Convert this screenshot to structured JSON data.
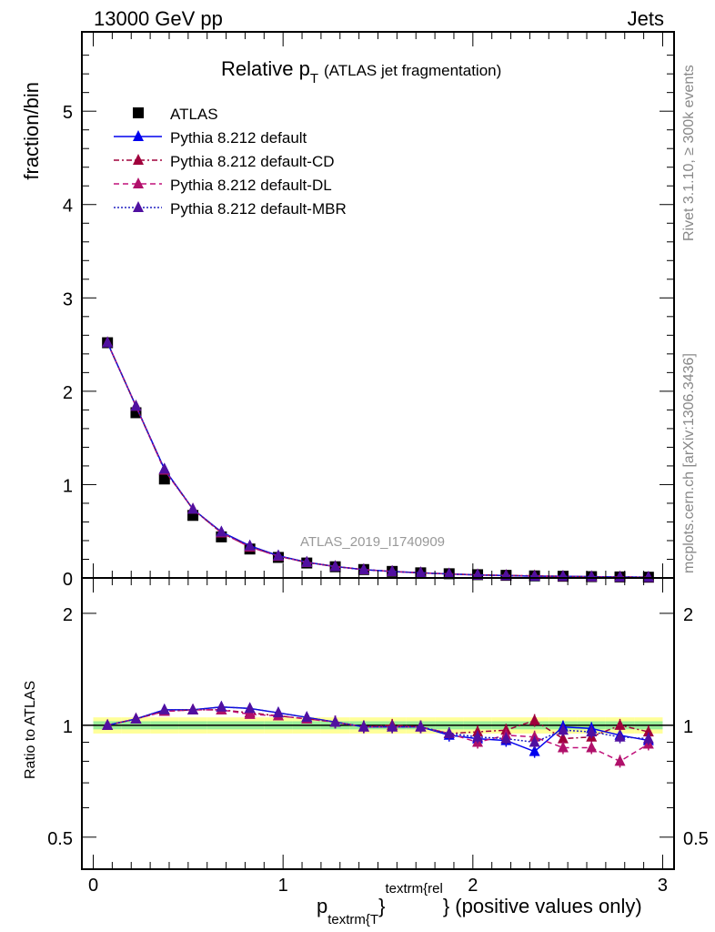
{
  "header": {
    "left": "13000 GeV pp",
    "right": "Jets"
  },
  "side": {
    "rivet": "Rivet 3.1.10, ≥ 300k events",
    "mcplots": "mcplots.cern.ch [arXiv:1306.3436]"
  },
  "watermark": "ATLAS_2019_I1740909",
  "chart_data": {
    "type": "scatter",
    "title": "Relative p",
    "title_sub": "T",
    "title_suffix": "(ATLAS jet fragmentation)",
    "ylabel": "fraction/bin",
    "ratio_ylabel": "Ratio to ATLAS",
    "xlabel_main": "p",
    "xlabel_sub": "textrm{T",
    "xlabel_brace": "}",
    "xlabel_sup": "textrm{rel",
    "xlabel_rest": "} (positive values only)",
    "xlim": [
      -0.06,
      3.06
    ],
    "ylim": [
      0,
      5.85
    ],
    "ratio_ylim": [
      0.41,
      2.49
    ],
    "ratio_scale": "log",
    "x_ticks": [
      "0",
      "1",
      "2",
      "3"
    ],
    "y_ticks": [
      "0",
      "1",
      "2",
      "3",
      "4",
      "5"
    ],
    "ratio_ticks": [
      "0.5",
      "1",
      "2"
    ],
    "legend_position": "top-left",
    "x": [
      0.075,
      0.225,
      0.375,
      0.525,
      0.675,
      0.825,
      0.975,
      1.125,
      1.275,
      1.425,
      1.575,
      1.725,
      1.875,
      2.025,
      2.175,
      2.325,
      2.475,
      2.625,
      2.775,
      2.925
    ],
    "data": {
      "name": "ATLAS",
      "values": [
        2.52,
        1.77,
        1.06,
        0.67,
        0.44,
        0.31,
        0.22,
        0.16,
        0.12,
        0.09,
        0.07,
        0.055,
        0.045,
        0.035,
        0.028,
        0.022,
        0.018,
        0.014,
        0.011,
        0.008
      ],
      "band_outer": 0.05,
      "band_inner": 0.025
    },
    "series": [
      {
        "name": "Pythia 8.212 default",
        "color": "#0000ee",
        "dash": "",
        "marker": "#0000ee",
        "ratio": [
          1.0,
          1.04,
          1.1,
          1.1,
          1.12,
          1.11,
          1.08,
          1.05,
          1.02,
          0.99,
          0.99,
          0.99,
          0.94,
          0.92,
          0.91,
          0.85,
          0.99,
          0.98,
          0.94,
          0.91
        ]
      },
      {
        "name": "Pythia 8.212 default-CD",
        "color": "#a0003c",
        "dash": "6,3,2,3",
        "marker": "#a0003c",
        "ratio": [
          1.0,
          1.04,
          1.09,
          1.1,
          1.1,
          1.08,
          1.06,
          1.04,
          1.02,
          0.99,
          1.0,
          0.99,
          0.95,
          0.96,
          0.97,
          1.03,
          0.92,
          0.93,
          1.0,
          0.96
        ]
      },
      {
        "name": "Pythia 8.212 default-DL",
        "color": "#c0107a",
        "dash": "6,4",
        "marker": "#b0106a",
        "ratio": [
          1.0,
          1.04,
          1.09,
          1.1,
          1.1,
          1.07,
          1.06,
          1.04,
          1.02,
          0.99,
          0.99,
          0.99,
          0.95,
          0.9,
          0.94,
          0.93,
          0.87,
          0.87,
          0.8,
          0.89
        ]
      },
      {
        "name": "Pythia 8.212 default-MBR",
        "color": "#2020c0",
        "dash": "2,2",
        "marker": "#5010a0",
        "ratio": [
          1.0,
          1.04,
          1.1,
          1.1,
          1.12,
          1.11,
          1.08,
          1.05,
          1.02,
          0.99,
          0.99,
          0.99,
          0.95,
          0.93,
          0.92,
          0.9,
          0.97,
          0.96,
          0.93,
          0.92
        ]
      }
    ]
  }
}
